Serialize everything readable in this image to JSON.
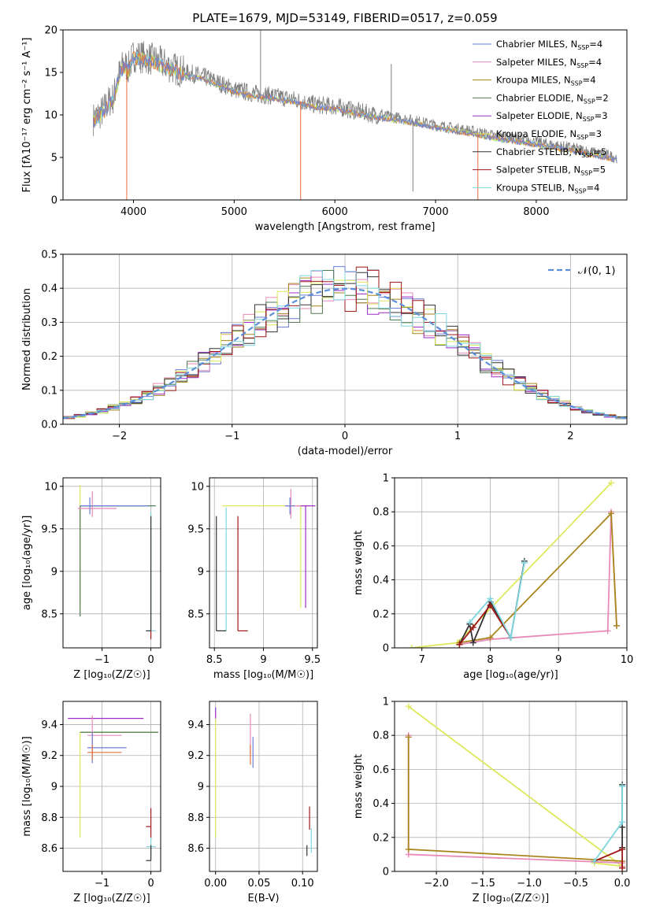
{
  "figure": {
    "title": "PLATE=1679, MJD=53149, FIBERID=0517, z=0.059"
  },
  "colors": {
    "Chabrier MILES": "#6b7fd7",
    "Salpeter MILES": "#e88ab8",
    "Kroupa MILES": "#a8861c",
    "Chabrier ELODIE": "#4f7a4f",
    "Salpeter ELODIE": "#9a2dc8",
    "Kroupa ELODIE": "#dde85a",
    "Chabrier STELIB": "#333333",
    "Salpeter STELIB": "#a01818",
    "Kroupa STELIB": "#7fd6e0",
    "data": "#808080",
    "orange": "#e8703a",
    "yellowgreen": "#c9e04a",
    "normal_curve": "#5b8fd9"
  },
  "chart_data": [
    {
      "id": "spectrum",
      "type": "line",
      "xlabel": "wavelength [Angstrom, rest frame]",
      "ylabel": "Flux [f",
      "ylabel_math": "λ10⁻¹⁷ erg cm⁻² s⁻¹ A⁻¹]",
      "xlim": [
        3300,
        8900
      ],
      "ylim": [
        0,
        20
      ],
      "xticks": [
        4000,
        5000,
        6000,
        7000,
        8000
      ],
      "yticks": [
        0,
        5,
        10,
        15,
        20
      ],
      "grid": false,
      "legend_position": "top-right",
      "legend": [
        {
          "name": "Chabrier MILES",
          "nssp": "4"
        },
        {
          "name": "Salpeter MILES",
          "nssp": "4"
        },
        {
          "name": "Kroupa MILES",
          "nssp": "4"
        },
        {
          "name": "Chabrier ELODIE",
          "nssp": "2"
        },
        {
          "name": "Salpeter ELODIE",
          "nssp": "3"
        },
        {
          "name": "Kroupa ELODIE",
          "nssp": "3"
        },
        {
          "name": "Chabrier STELIB",
          "nssp": "5"
        },
        {
          "name": "Salpeter STELIB",
          "nssp": "5"
        },
        {
          "name": "Kroupa STELIB",
          "nssp": "4"
        }
      ],
      "continuum": {
        "x": [
          3600,
          3700,
          3750,
          3800,
          3850,
          3900,
          3950,
          4000,
          4100,
          4200,
          4300,
          4400,
          4500,
          4600,
          4700,
          4800,
          4900,
          5000,
          5200,
          5400,
          5600,
          5800,
          6000,
          6200,
          6400,
          6600,
          6800,
          7000,
          7200,
          7400,
          7600,
          7800,
          8000,
          8200,
          8400,
          8600,
          8800
        ],
        "y": [
          9.5,
          10.5,
          11.5,
          12.0,
          14.5,
          16.0,
          15.5,
          17.0,
          16.8,
          16.5,
          16.0,
          15.5,
          15.0,
          14.8,
          14.5,
          14.0,
          13.5,
          13.0,
          12.5,
          12.2,
          11.8,
          11.2,
          11.0,
          10.5,
          10.0,
          9.7,
          9.3,
          8.8,
          8.4,
          8.0,
          7.5,
          7.2,
          6.8,
          6.4,
          6.0,
          5.5,
          5.0
        ]
      },
      "spikes": [
        {
          "x": 3933,
          "y": 0
        },
        {
          "x": 5262,
          "y": 20
        },
        {
          "x": 5660,
          "y": 0
        },
        {
          "x": 6560,
          "y": 16
        },
        {
          "x": 6775,
          "y": 1
        },
        {
          "x": 7420,
          "y": 0
        }
      ]
    },
    {
      "id": "residuals",
      "type": "histogram",
      "xlabel": "(data-model)/error",
      "ylabel": "Normed distribution",
      "xlim": [
        -2.5,
        2.5
      ],
      "ylim": [
        0,
        0.5
      ],
      "xticks": [
        -2,
        -1,
        0,
        1,
        2
      ],
      "yticks": [
        0.0,
        0.1,
        0.2,
        0.3,
        0.4,
        0.5
      ],
      "grid": true,
      "legend_position": "top-right",
      "legend": [
        {
          "name": "𝒩(0, 1)"
        }
      ],
      "bin_width": 0.1
    },
    {
      "id": "age-vs-Z",
      "type": "scatter",
      "xlabel": "Z [log₁₀(Z/Z☉)]",
      "ylabel": "age  [log₁₀(age/yr)]",
      "xlim": [
        -1.8,
        0.2
      ],
      "ylim": [
        8.1,
        10.1
      ],
      "xticks": [
        -1,
        0
      ],
      "yticks": [
        8.5,
        9.0,
        9.5,
        10.0
      ],
      "grid": true,
      "errorbars": [
        {
          "series": "Kroupa ELODIE",
          "x": -1.45,
          "xerr": [
            0.0,
            1.3
          ],
          "y": 9.77,
          "yerr": [
            1.2,
            0.25
          ]
        },
        {
          "series": "Chabrier ELODIE",
          "x": -1.45,
          "xerr": [
            0.0,
            1.55
          ],
          "y": 9.77,
          "yerr": [
            1.3,
            0.0
          ]
        },
        {
          "series": "Salpeter MILES",
          "x": -1.2,
          "xerr": [
            0.3,
            0.5
          ],
          "y": 9.74,
          "yerr": [
            0.1,
            0.2
          ]
        },
        {
          "series": "Chabrier MILES",
          "x": -1.25,
          "xerr": [
            0.2,
            1.2
          ],
          "y": 9.77,
          "yerr": [
            0.1,
            0.1
          ]
        },
        {
          "series": "Kroupa STELIB",
          "x": 0.0,
          "xerr": [
            0.1,
            0.1
          ],
          "y": 8.3,
          "yerr": [
            0.0,
            1.4
          ]
        },
        {
          "series": "Chabrier STELIB",
          "x": 0.0,
          "xerr": [
            0.1,
            0.0
          ],
          "y": 8.3,
          "yerr": [
            0.0,
            1.35
          ]
        },
        {
          "series": "Salpeter STELIB",
          "x": 0.0,
          "xerr": [
            0.0,
            0.0
          ],
          "y": 8.3,
          "yerr": [
            0.1,
            0.0
          ]
        }
      ]
    },
    {
      "id": "age-vs-mass",
      "type": "scatter",
      "xlabel": "mass [log₁₀(M/M☉)]",
      "ylabel": "",
      "xlim": [
        8.45,
        9.55
      ],
      "ylim": [
        8.1,
        10.1
      ],
      "xticks": [
        8.5,
        9.0,
        9.5
      ],
      "yticks": [
        8.5,
        9.0,
        9.5,
        10.0
      ],
      "grid": true,
      "errorbars": [
        {
          "series": "Kroupa ELODIE",
          "x": 9.38,
          "xerr": [
            0.8,
            0.0
          ],
          "y": 9.77,
          "yerr": [
            1.2,
            0.0
          ]
        },
        {
          "series": "Salpeter ELODIE",
          "x": 9.43,
          "xerr": [
            0.1,
            0.1
          ],
          "y": 9.77,
          "yerr": [
            1.2,
            0.0
          ]
        },
        {
          "series": "Salpeter MILES",
          "x": 9.28,
          "xerr": [
            0.05,
            0.1
          ],
          "y": 9.77,
          "yerr": [
            0.15,
            0.2
          ]
        },
        {
          "series": "Chabrier MILES",
          "x": 9.27,
          "xerr": [
            0.05,
            0.05
          ],
          "y": 9.77,
          "yerr": [
            0.1,
            0.1
          ]
        },
        {
          "series": "Kroupa STELIB",
          "x": 8.62,
          "xerr": [
            0.1,
            0.0
          ],
          "y": 8.3,
          "yerr": [
            0.0,
            1.45
          ]
        },
        {
          "series": "Chabrier STELIB",
          "x": 8.52,
          "xerr": [
            0.0,
            0.1
          ],
          "y": 8.3,
          "yerr": [
            0.0,
            1.35
          ]
        },
        {
          "series": "Salpeter STELIB",
          "x": 8.74,
          "xerr": [
            0.0,
            0.1
          ],
          "y": 8.3,
          "yerr": [
            0.0,
            1.35
          ]
        }
      ]
    },
    {
      "id": "weight-vs-age",
      "type": "line",
      "xlabel": "age  [log₁₀(age/yr)]",
      "ylabel": "mass weight",
      "xlim": [
        6.6,
        10.0
      ],
      "ylim": [
        0,
        1.0
      ],
      "xticks": [
        7,
        8,
        9,
        10
      ],
      "yticks": [
        0.0,
        0.2,
        0.4,
        0.6,
        0.8,
        1.0
      ],
      "grid": true,
      "series": [
        {
          "name": "Kroupa ELODIE",
          "x": [
            6.85,
            7.52,
            9.77
          ],
          "y": [
            0.0,
            0.03,
            0.97
          ]
        },
        {
          "name": "Salpeter MILES",
          "x": [
            7.55,
            8.0,
            9.72,
            9.77,
            9.85
          ],
          "y": [
            0.02,
            0.05,
            0.1,
            0.8,
            0.13
          ]
        },
        {
          "name": "Kroupa MILES",
          "x": [
            7.55,
            8.0,
            9.77,
            9.85
          ],
          "y": [
            0.03,
            0.06,
            0.79,
            0.13
          ]
        },
        {
          "name": "Chabrier STELIB",
          "x": [
            7.55,
            7.7,
            7.75,
            8.0,
            8.3,
            8.5
          ],
          "y": [
            0.02,
            0.14,
            0.03,
            0.27,
            0.06,
            0.51
          ]
        },
        {
          "name": "Salpeter STELIB",
          "x": [
            7.55,
            7.75,
            8.0,
            8.3
          ],
          "y": [
            0.02,
            0.12,
            0.25,
            0.06
          ]
        },
        {
          "name": "Kroupa STELIB",
          "x": [
            7.7,
            8.0,
            8.3,
            8.5
          ],
          "y": [
            0.15,
            0.29,
            0.06,
            0.5
          ]
        }
      ]
    },
    {
      "id": "mass-vs-Z",
      "type": "scatter",
      "xlabel": "Z [log₁₀(Z/Z☉)]",
      "ylabel": "mass [log₁₀(M/M☉)]",
      "xlim": [
        -1.8,
        0.2
      ],
      "ylim": [
        8.45,
        9.55
      ],
      "xticks": [
        -1,
        0
      ],
      "yticks": [
        8.6,
        8.8,
        9.0,
        9.2,
        9.4
      ],
      "grid": true,
      "errorbars": [
        {
          "series": "Salpeter ELODIE",
          "x": -1.45,
          "xerr": [
            0.25,
            1.3
          ],
          "y": 9.44,
          "yerr": [
            0.0,
            0.0
          ]
        },
        {
          "series": "Kroupa ELODIE",
          "x": -1.45,
          "xerr": [
            0.0,
            1.6
          ],
          "y": 9.35,
          "yerr": [
            0.68,
            0.0
          ]
        },
        {
          "series": "Chabrier ELODIE",
          "x": -1.45,
          "xerr": [
            0.0,
            1.6
          ],
          "y": 9.35,
          "yerr": [
            0.0,
            0.0
          ]
        },
        {
          "series": "Salpeter MILES",
          "x": -1.2,
          "xerr": [
            0.1,
            0.6
          ],
          "y": 9.33,
          "yerr": [
            0.1,
            0.13
          ]
        },
        {
          "series": "Chabrier MILES",
          "x": -1.2,
          "xerr": [
            0.1,
            0.7
          ],
          "y": 9.25,
          "yerr": [
            0.1,
            0.1
          ]
        },
        {
          "series": "orange",
          "x": -1.2,
          "xerr": [
            0.1,
            0.6
          ],
          "y": 9.22,
          "yerr": [
            0.05,
            0.05
          ]
        },
        {
          "series": "Salpeter STELIB",
          "x": 0.0,
          "xerr": [
            0.1,
            0.0
          ],
          "y": 8.74,
          "yerr": [
            0.08,
            0.12
          ]
        },
        {
          "series": "Kroupa STELIB",
          "x": 0.0,
          "xerr": [
            0.1,
            0.1
          ],
          "y": 8.61,
          "yerr": [
            0.06,
            0.06
          ]
        },
        {
          "series": "Chabrier STELIB",
          "x": 0.0,
          "xerr": [
            0.1,
            0.0
          ],
          "y": 8.52,
          "yerr": [
            0.0,
            0.1
          ]
        }
      ]
    },
    {
      "id": "mass-vs-ebv",
      "type": "scatter",
      "xlabel": "E(B-V)",
      "ylabel": "",
      "xlim": [
        -0.007,
        0.117
      ],
      "ylim": [
        8.45,
        9.55
      ],
      "xticks": [
        0.0,
        0.05,
        0.1
      ],
      "xticklabels": [
        "0.00",
        "0.05",
        "0.10"
      ],
      "yticks": [
        8.6,
        8.8,
        9.0,
        9.2,
        9.4
      ],
      "grid": true,
      "errorbars": [
        {
          "series": "Salpeter ELODIE",
          "x": 0.0,
          "y": 9.44,
          "yerr": [
            0.0,
            0.07
          ]
        },
        {
          "series": "Kroupa ELODIE",
          "x": 0.0,
          "y": 9.05,
          "yerr": [
            0.38,
            0.38
          ]
        },
        {
          "series": "Salpeter MILES",
          "x": 0.04,
          "y": 9.3,
          "yerr": [
            0.1,
            0.17
          ]
        },
        {
          "series": "Chabrier MILES",
          "x": 0.043,
          "y": 9.22,
          "yerr": [
            0.1,
            0.1
          ]
        },
        {
          "series": "orange",
          "x": 0.04,
          "y": 9.22,
          "yerr": [
            0.08,
            0.05
          ]
        },
        {
          "series": "Salpeter STELIB",
          "x": 0.108,
          "y": 8.8,
          "yerr": [
            0.08,
            0.07
          ]
        },
        {
          "series": "Kroupa STELIB",
          "x": 0.11,
          "y": 8.63,
          "yerr": [
            0.06,
            0.1
          ]
        },
        {
          "series": "Chabrier STELIB",
          "x": 0.105,
          "y": 8.62,
          "yerr": [
            0.07,
            0.0
          ]
        }
      ]
    },
    {
      "id": "weight-vs-Z",
      "type": "line",
      "xlabel": "Z [log₁₀(Z/Z☉)]",
      "ylabel": "mass weight",
      "xlim": [
        -2.45,
        0.05
      ],
      "ylim": [
        0,
        1.0
      ],
      "xticks": [
        -2.0,
        -1.5,
        -1.0,
        -0.5,
        0.0
      ],
      "xticklabels": [
        "−2.0",
        "−1.5",
        "−1.0",
        "−0.5",
        "0.0"
      ],
      "yticks": [
        0.0,
        0.2,
        0.4,
        0.6,
        0.8,
        1.0
      ],
      "grid": true,
      "series": [
        {
          "name": "Kroupa ELODIE",
          "x": [
            -2.3,
            0.0,
            -0.3
          ],
          "y": [
            0.97,
            0.03,
            0.05
          ]
        },
        {
          "name": "Salpeter MILES",
          "x": [
            -2.3,
            -2.3,
            0.0,
            0.0
          ],
          "y": [
            0.8,
            0.1,
            0.05,
            0.03
          ]
        },
        {
          "name": "Kroupa MILES",
          "x": [
            -2.3,
            -2.3,
            0.0
          ],
          "y": [
            0.79,
            0.13,
            0.06
          ]
        },
        {
          "name": "Chabrier STELIB",
          "x": [
            0.0,
            0.0,
            0.0
          ],
          "y": [
            0.51,
            0.26,
            0.14
          ]
        },
        {
          "name": "Salpeter STELIB",
          "x": [
            -0.3,
            0.0,
            0.0
          ],
          "y": [
            0.06,
            0.13,
            0.02
          ]
        },
        {
          "name": "Kroupa STELIB",
          "x": [
            -0.3,
            0.0,
            0.0
          ],
          "y": [
            0.06,
            0.29,
            0.5
          ]
        }
      ]
    }
  ]
}
